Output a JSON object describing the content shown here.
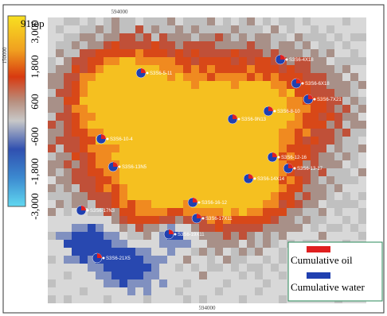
{
  "colorbar": {
    "title": "91top",
    "ticks": [
      {
        "value": 3000,
        "label": "3,000"
      },
      {
        "value": 1800,
        "label": "1,800"
      },
      {
        "value": 600,
        "label": "600"
      },
      {
        "value": -600,
        "label": "-600"
      },
      {
        "value": -1800,
        "label": "-1,800"
      },
      {
        "value": -3000,
        "label": "-3,000"
      }
    ]
  },
  "axes": {
    "top_label": "594000",
    "bottom_label": "594000",
    "left_label": "150000"
  },
  "wells": [
    {
      "label": "S3S6-4X18"
    },
    {
      "label": "S3S6-5-11"
    },
    {
      "label": "S3S6-6X18"
    },
    {
      "label": "S3S6-7X21"
    },
    {
      "label": "S3S6-8-10"
    },
    {
      "label": "S3S6-9N13"
    },
    {
      "label": "S3S6-10-4"
    },
    {
      "label": "S3S6-12-16"
    },
    {
      "label": "S3S6-13-17"
    },
    {
      "label": "S3S6-13N5"
    },
    {
      "label": "S3S6-14X14"
    },
    {
      "label": "S3S6-16-12"
    },
    {
      "label": "S3S6-17X11"
    },
    {
      "label": "S3S6-17N3"
    },
    {
      "label": "S3S6-19X11"
    },
    {
      "label": "S3S6-21X5"
    }
  ],
  "legend": {
    "items": [
      {
        "label": "Cumulative oil",
        "color": "#e02020"
      },
      {
        "label": "Cumulative water",
        "color": "#2040b0"
      }
    ]
  }
}
